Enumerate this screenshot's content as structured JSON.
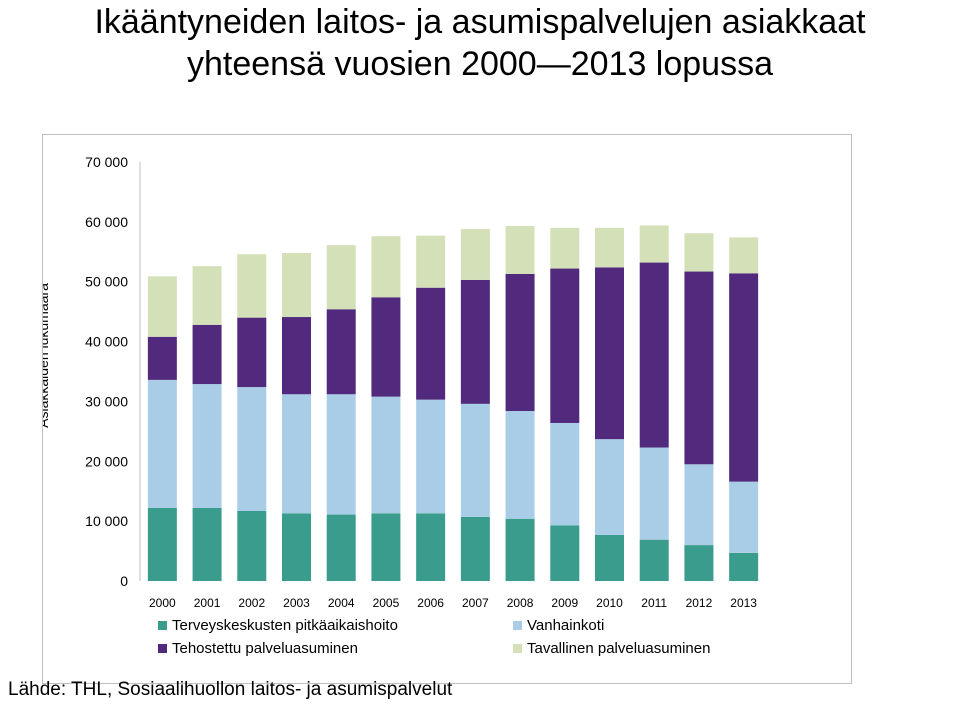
{
  "title_line1": "Ikääntyneiden laitos- ja asumispalvelujen asiakkaat",
  "title_line2": "yhteensä vuosien 2000—2013 lopussa",
  "source": "Lähde: THL, Sosiaalihuollon laitos- ja asumispalvelut",
  "chart_data": {
    "type": "bar",
    "stacked": true,
    "title": "",
    "xlabel": "",
    "ylabel": "Asiakkaiden lukumäärä",
    "ylim": [
      0,
      70000
    ],
    "yticks": [
      0,
      10000,
      20000,
      30000,
      40000,
      50000,
      60000,
      70000
    ],
    "ytick_labels": [
      "0",
      "10 000",
      "20 000",
      "30 000",
      "40 000",
      "50 000",
      "60 000",
      "70 000"
    ],
    "grid": true,
    "legend": "bottom",
    "categories": [
      "2000",
      "2001",
      "2002",
      "2003",
      "2004",
      "2005",
      "2006",
      "2007",
      "2008",
      "2009",
      "2010",
      "2011",
      "2012",
      "2013"
    ],
    "series": [
      {
        "name": "Terveyskeskusten pitkäaikaishoito",
        "color": "#3a9c8c",
        "values": [
          12200,
          12200,
          11700,
          11300,
          11100,
          11300,
          11300,
          10700,
          10400,
          9300,
          7700,
          6900,
          6000,
          4700
        ]
      },
      {
        "name": "Vanhainkoti",
        "color": "#a9cde6",
        "values": [
          21400,
          20700,
          20700,
          19900,
          20100,
          19500,
          19000,
          18900,
          18000,
          17100,
          16000,
          15400,
          13500,
          11900
        ]
      },
      {
        "name": "Tehostettu palveluasuminen",
        "color": "#512a7e",
        "values": [
          7200,
          9900,
          11600,
          12900,
          14200,
          16600,
          18700,
          20700,
          22900,
          25800,
          28700,
          30900,
          32200,
          34800
        ]
      },
      {
        "name": "Tavallinen palveluasuminen",
        "color": "#d3e0b8",
        "values": [
          10100,
          9800,
          10600,
          10700,
          10700,
          10200,
          8700,
          8500,
          8000,
          6800,
          6600,
          6200,
          6400,
          6000
        ]
      }
    ],
    "legend_order": [
      "Terveyskeskusten pitkäaikaishoito",
      "Vanhainkoti",
      "Tehostettu palveluasuminen",
      "Tavallinen palveluasuminen"
    ]
  }
}
